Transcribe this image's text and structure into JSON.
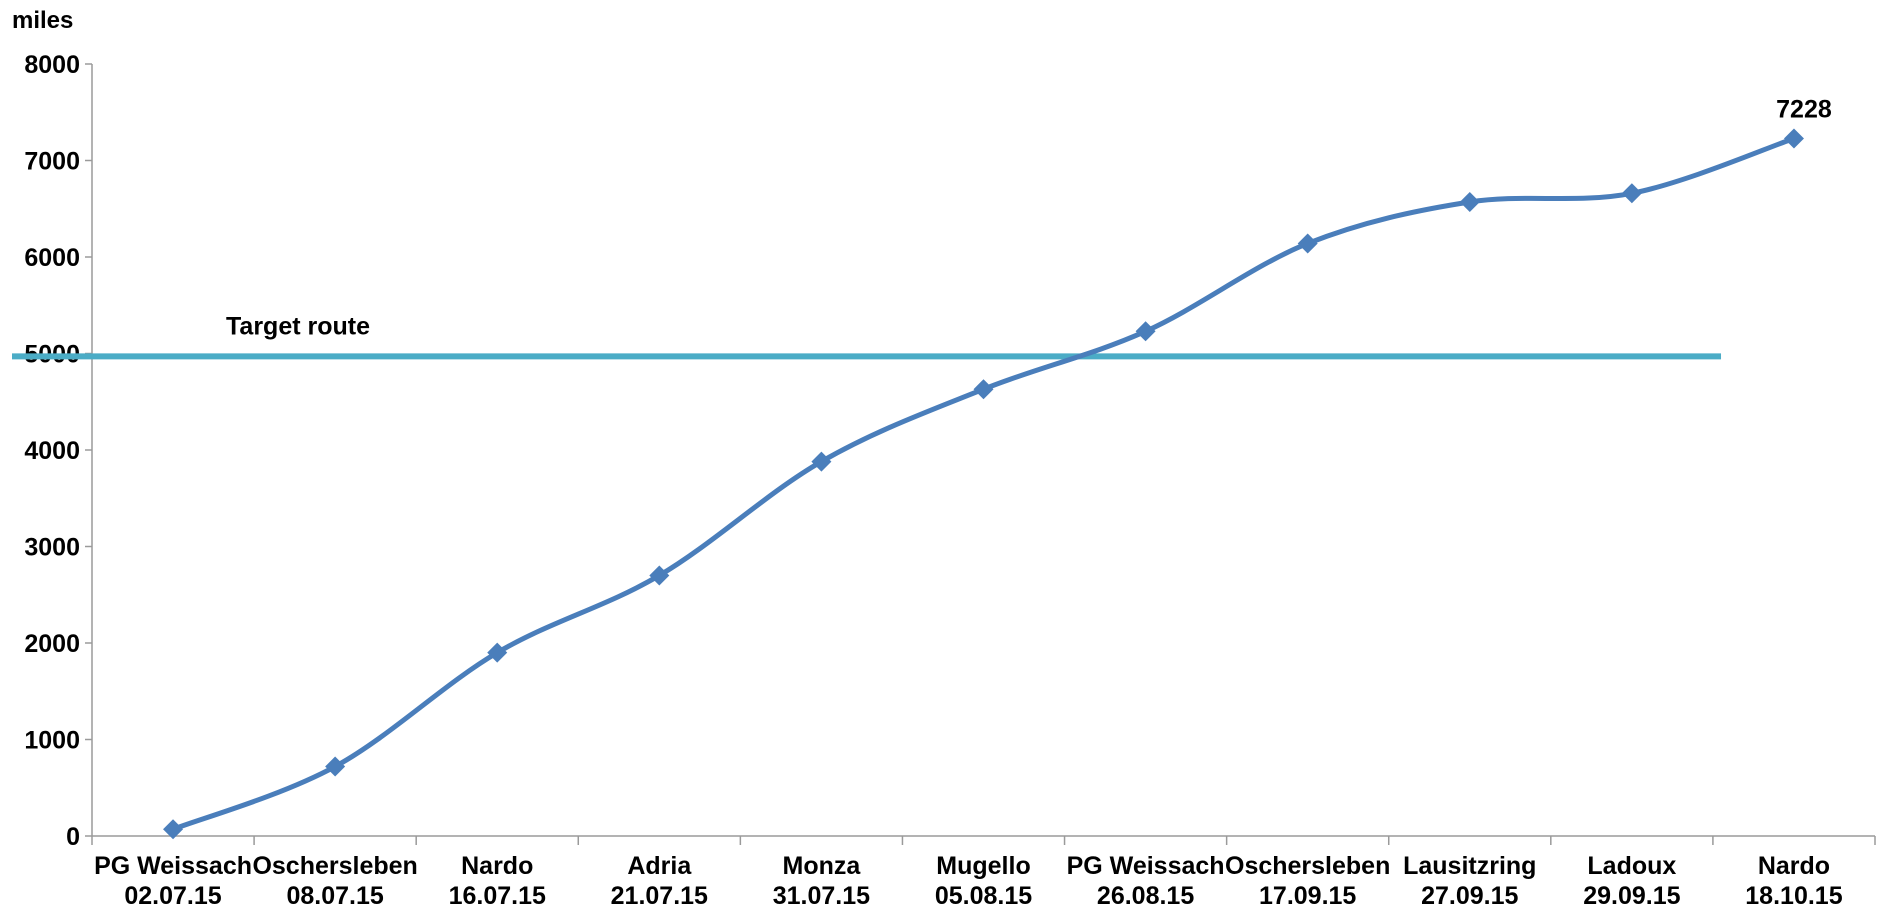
{
  "chart_data": {
    "type": "line",
    "title": "",
    "xlabel": "",
    "ylabel": "miles",
    "ylim": [
      0,
      8000
    ],
    "yticks": [
      0,
      1000,
      2000,
      3000,
      4000,
      5000,
      6000,
      7000,
      8000
    ],
    "grid": false,
    "legend": "none",
    "categories": [
      [
        "PG Weissach",
        "02.07.15"
      ],
      [
        "Oschersleben",
        "08.07.15"
      ],
      [
        "Nardo",
        "16.07.15"
      ],
      [
        "Adria",
        "21.07.15"
      ],
      [
        "Monza",
        "31.07.15"
      ],
      [
        "Mugello",
        "05.08.15"
      ],
      [
        "PG Weissach",
        "26.08.15"
      ],
      [
        "Oschersleben",
        "17.09.15"
      ],
      [
        "Lausitzring",
        "27.09.15"
      ],
      [
        "Ladoux",
        "29.09.15"
      ],
      [
        "Nardo",
        "18.10.15"
      ]
    ],
    "series": [
      {
        "values": [
          70,
          720,
          1900,
          2700,
          3880,
          4630,
          5230,
          6140,
          6570,
          6660,
          7228
        ],
        "color": "#4a7ebb",
        "marker": "diamond",
        "smooth": true
      }
    ],
    "reference_line": {
      "label": "Target route",
      "value": 4970,
      "color": "#4bacc6"
    },
    "data_labels": [
      {
        "index": 10,
        "text": "7228"
      }
    ]
  }
}
